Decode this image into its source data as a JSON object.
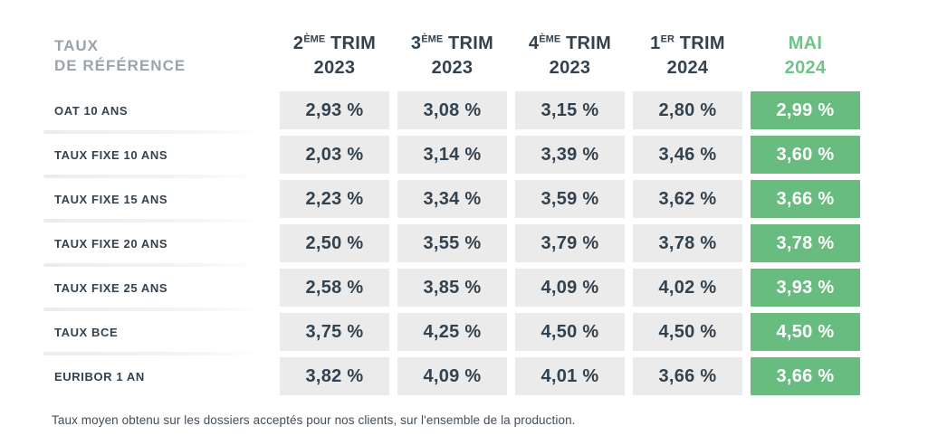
{
  "chart_data": {
    "type": "table",
    "title_line1": "TAUX",
    "title_line2": "DE RÉFÉRENCE",
    "columns": [
      {
        "num": "2",
        "sup": "ÈME",
        "rest": "TRIM",
        "year": "2023",
        "highlight": false
      },
      {
        "num": "3",
        "sup": "ÈME",
        "rest": "TRIM",
        "year": "2023",
        "highlight": false
      },
      {
        "num": "4",
        "sup": "ÈME",
        "rest": "TRIM",
        "year": "2023",
        "highlight": false
      },
      {
        "num": "1",
        "sup": "ER",
        "rest": "TRIM",
        "year": "2024",
        "highlight": false
      },
      {
        "num": "MAI",
        "sup": "",
        "rest": "",
        "year": "2024",
        "highlight": true
      }
    ],
    "rows": [
      {
        "label": "OAT 10 ANS",
        "values": [
          "2,93 %",
          "3,08 %",
          "3,15 %",
          "2,80 %",
          "2,99 %"
        ]
      },
      {
        "label": "TAUX FIXE 10 ANS",
        "values": [
          "2,03 %",
          "3,14 %",
          "3,39 %",
          "3,46 %",
          "3,60 %"
        ]
      },
      {
        "label": "TAUX FIXE 15 ANS",
        "values": [
          "2,23 %",
          "3,34 %",
          "3,59 %",
          "3,62 %",
          "3,66 %"
        ]
      },
      {
        "label": "TAUX FIXE 20 ANS",
        "values": [
          "2,50 %",
          "3,55 %",
          "3,79 %",
          "3,78 %",
          "3,78 %"
        ]
      },
      {
        "label": "TAUX FIXE 25 ANS",
        "values": [
          "2,58 %",
          "3,85 %",
          "4,09 %",
          "4,02 %",
          "3,93 %"
        ]
      },
      {
        "label": "TAUX BCE",
        "values": [
          "3,75 %",
          "4,25 %",
          "4,50 %",
          "4,50 %",
          "4,50 %"
        ]
      },
      {
        "label": "EURIBOR 1 AN",
        "values": [
          "3,82 %",
          "4,09 %",
          "4,01 %",
          "3,66 %",
          "3,66 %"
        ]
      }
    ],
    "highlight_column_label": "MAI 2024",
    "footnote": "Taux moyen obtenu sur les dossiers acceptés pour nos clients, sur l'ensemble de la production."
  },
  "colors": {
    "accent_green": "#69bc7f",
    "header_green": "#6fc487",
    "dark_navy": "#33424f",
    "muted_gray": "#9aa4ab",
    "cell_gray": "#ebebeb",
    "footnote_color": "#414e5a"
  }
}
